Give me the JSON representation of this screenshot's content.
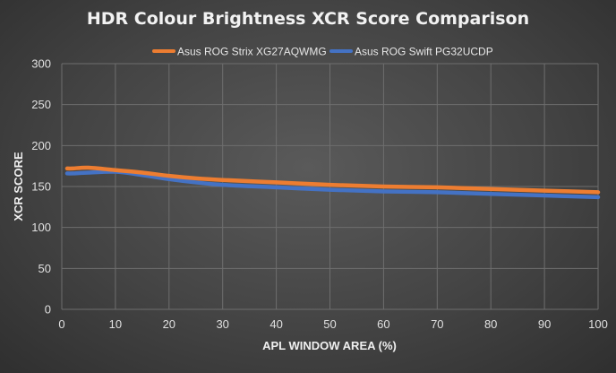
{
  "chart_data": {
    "type": "line",
    "title": "HDR Colour Brightness XCR Score Comparison",
    "xlabel": "APL WINDOW AREA (%)",
    "ylabel": "XCR SCORE",
    "xlim": [
      0,
      100
    ],
    "ylim": [
      0,
      300
    ],
    "xticks": [
      0,
      10,
      20,
      30,
      40,
      50,
      60,
      70,
      80,
      90,
      100
    ],
    "yticks": [
      0,
      50,
      100,
      150,
      200,
      250,
      300
    ],
    "grid": true,
    "legend": "top-center",
    "series": [
      {
        "name": "Asus ROG Strix XG27AQWMG",
        "color": "#ED7D31",
        "x": [
          1,
          2,
          5,
          10,
          15,
          20,
          25,
          30,
          40,
          50,
          60,
          70,
          80,
          90,
          100
        ],
        "y": [
          172,
          172,
          173,
          170,
          167,
          163,
          160,
          158,
          155,
          152,
          150,
          149,
          147,
          145,
          143
        ]
      },
      {
        "name": "Asus ROG Swift PG32UCDP",
        "color": "#4472C4",
        "x": [
          1,
          2,
          5,
          10,
          15,
          20,
          25,
          30,
          40,
          50,
          60,
          70,
          80,
          90,
          100
        ],
        "y": [
          166,
          166,
          167,
          168,
          164,
          159,
          155,
          152,
          149,
          146,
          144,
          143,
          141,
          139,
          137
        ]
      }
    ]
  }
}
